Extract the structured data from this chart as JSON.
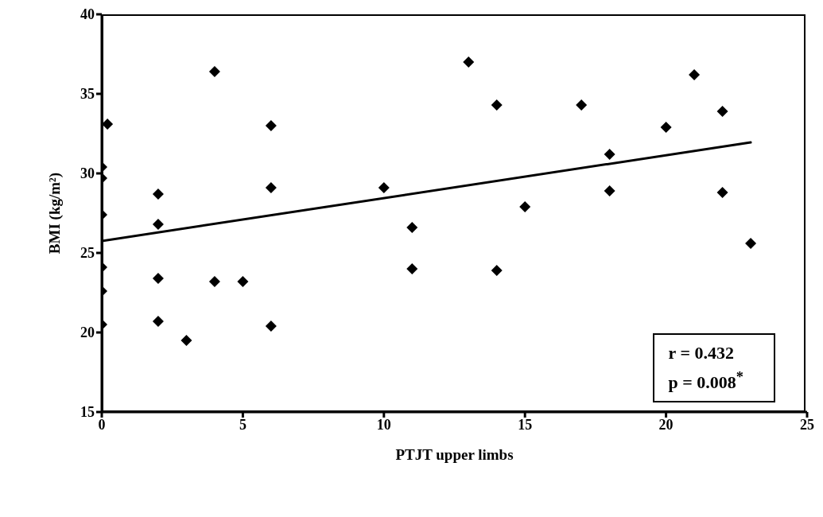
{
  "chart_data": {
    "type": "scatter",
    "xlabel": "PTJT upper limbs",
    "ylabel": "BMI (kg/m²)",
    "annotations": [
      "r = 0.432",
      "p = 0.008$^{*}$"
    ],
    "series": [
      {
        "color": "#000000",
        "marker": "diamond",
        "x": [
          0.2,
          0,
          0,
          0,
          0,
          0,
          0,
          2,
          2,
          2,
          2,
          3,
          4,
          4,
          5,
          6,
          6,
          6,
          10,
          11,
          11,
          13,
          14,
          14,
          15,
          17,
          18,
          18,
          20,
          21,
          22,
          22,
          23
        ],
        "values": [
          33.1,
          30.4,
          29.7,
          27.4,
          24.1,
          22.6,
          20.5,
          28.7,
          26.8,
          23.4,
          20.7,
          19.5,
          36.4,
          23.2,
          23.2,
          33.0,
          29.1,
          20.4,
          29.1,
          26.6,
          24.0,
          37.0,
          34.3,
          23.9,
          27.9,
          34.3,
          31.2,
          28.9,
          32.9,
          36.2,
          33.9,
          28.8,
          25.6
        ]
      },
      {
        "type": "line",
        "color": "#000000",
        "marker": "none",
        "x": [
          0,
          23
        ],
        "values": [
          25.75,
          31.95
        ]
      }
    ],
    "xlim": [
      0,
      25
    ],
    "xticks": [
      0,
      5,
      10,
      15,
      20,
      25
    ],
    "ylim": [
      15,
      40
    ],
    "yticks": [
      15,
      20,
      25,
      30,
      35,
      40
    ],
    "grid": false,
    "legend": false
  }
}
